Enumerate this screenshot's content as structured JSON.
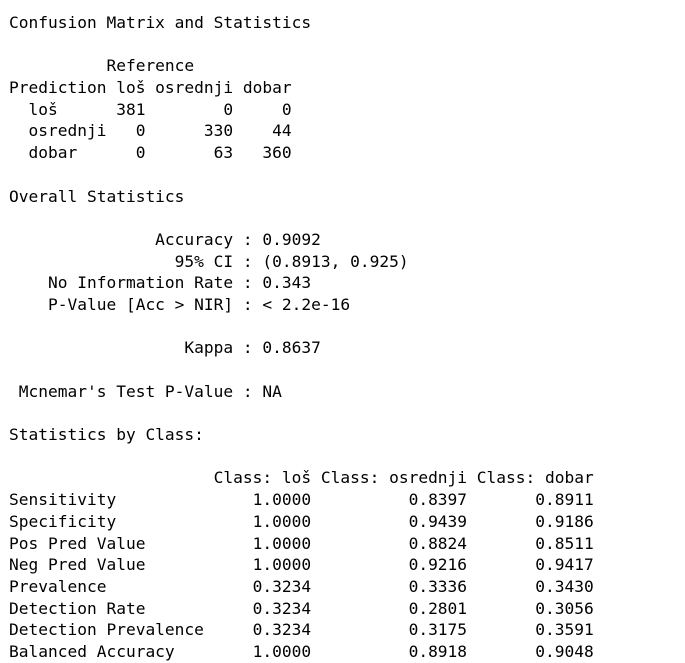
{
  "console_output": {
    "lines": [
      "Confusion Matrix and Statistics",
      "",
      "          Reference",
      "Prediction loš osrednji dobar",
      "  loš      381        0     0",
      "  osrednji   0      330    44",
      "  dobar      0       63   360",
      "",
      "Overall Statistics",
      "",
      "               Accuracy : 0.9092",
      "                 95% CI : (0.8913, 0.925)",
      "    No Information Rate : 0.343",
      "    P-Value [Acc > NIR] : < 2.2e-16",
      "",
      "                  Kappa : 0.8637",
      "",
      " Mcnemar's Test P-Value : NA",
      "",
      "Statistics by Class:",
      "",
      "                     Class: loš Class: osrednji Class: dobar",
      "Sensitivity              1.0000          0.8397       0.8911",
      "Specificity              1.0000          0.9439       0.9186",
      "Pos Pred Value           1.0000          0.8824       0.8511",
      "Neg Pred Value           1.0000          0.9216       0.9417",
      "Prevalence               0.3234          0.3336       0.3430",
      "Detection Rate           0.3234          0.2801       0.3056",
      "Detection Prevalence     0.3234          0.3175       0.3591",
      "Balanced Accuracy        1.0000          0.8918       0.9048"
    ]
  }
}
